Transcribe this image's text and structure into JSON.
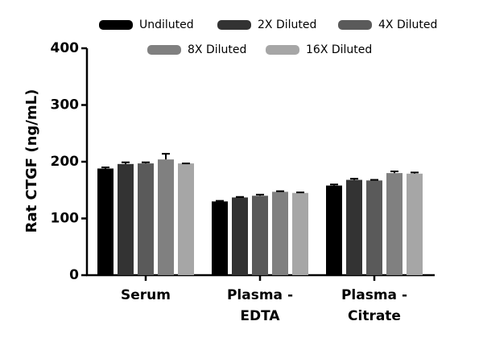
{
  "chart_data": {
    "type": "bar",
    "y_label": "Rat CTGF (ng/mL)",
    "categories": [
      [
        "Serum"
      ],
      [
        "Plasma -",
        "EDTA"
      ],
      [
        "Plasma -",
        "Citrate"
      ]
    ],
    "series": [
      {
        "name": "Undiluted",
        "color": "#000000",
        "values": [
          188,
          130,
          158
        ],
        "errors": [
          2,
          1,
          2
        ]
      },
      {
        "name": "2X Diluted",
        "color": "#333333",
        "values": [
          196,
          137,
          168
        ],
        "errors": [
          3,
          1,
          2
        ]
      },
      {
        "name": "4X Diluted",
        "color": "#5a5a5a",
        "values": [
          197,
          140,
          167
        ],
        "errors": [
          2,
          2,
          1
        ]
      },
      {
        "name": "8X Diluted",
        "color": "#808080",
        "values": [
          204,
          147,
          180
        ],
        "errors": [
          10,
          1,
          3
        ]
      },
      {
        "name": "16X Diluted",
        "color": "#a6a6a6",
        "values": [
          197,
          145,
          179
        ],
        "errors": [
          0,
          1,
          2
        ]
      }
    ],
    "ylim": [
      0,
      400
    ],
    "yticks": [
      0,
      100,
      200,
      300,
      400
    ]
  }
}
